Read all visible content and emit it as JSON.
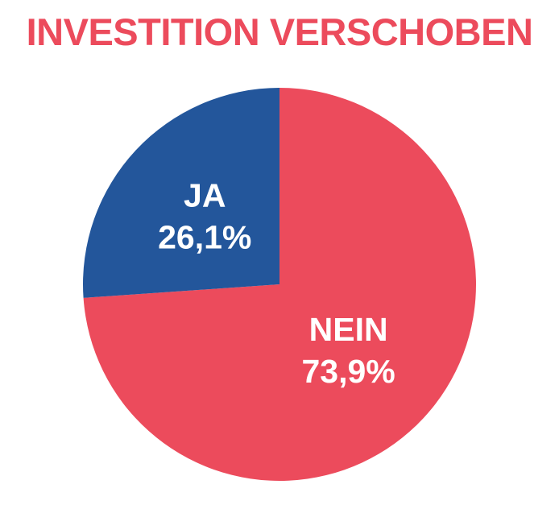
{
  "chart_data": {
    "type": "pie",
    "title": "INVESTITION VERSCHOBEN",
    "slices": [
      {
        "label": "NEIN",
        "value": 73.9,
        "value_label": "73,9%",
        "color": "#ec4b5c"
      },
      {
        "label": "JA",
        "value": 26.1,
        "value_label": "26,1%",
        "color": "#23569b"
      }
    ],
    "start_angle_deg": 0,
    "direction": "clockwise",
    "legend": "none"
  }
}
